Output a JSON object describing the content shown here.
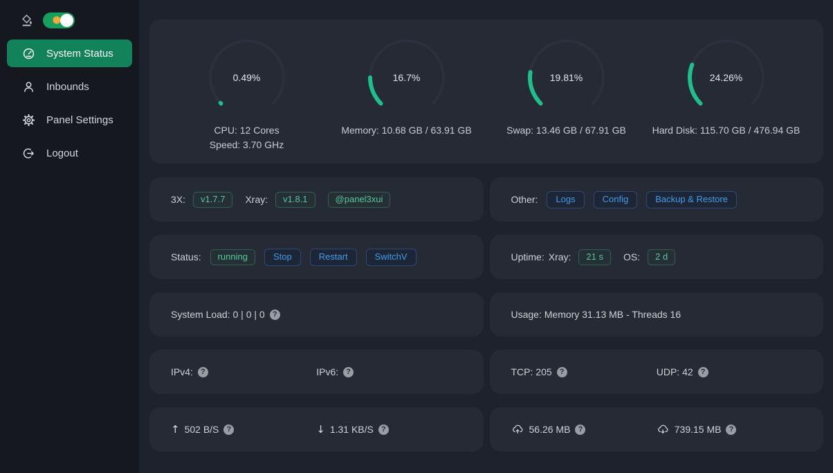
{
  "colors": {
    "accent_green": "#1fbe8b",
    "gauge_track": "#2b303c",
    "sidebar_active_green": "#11825a",
    "toggle_green": "#17a05d",
    "sun_orange": "#f2a93b",
    "tag_green_text": "#58c795",
    "button_blue_text": "#429ce8",
    "card_bg": "#252a35",
    "page_bg": "#1e222c",
    "sidebar_bg": "#15181f"
  },
  "sidebar": {
    "items": [
      {
        "label": "System Status"
      },
      {
        "label": "Inbounds"
      },
      {
        "label": "Panel Settings"
      },
      {
        "label": "Logout"
      }
    ]
  },
  "gauges": [
    {
      "percent": 0.49,
      "percent_label": "0.49%",
      "line1": "CPU: 12 Cores",
      "line2": "Speed: 3.70 GHz"
    },
    {
      "percent": 16.7,
      "percent_label": "16.7%",
      "line1": "Memory: 10.68 GB / 63.91 GB"
    },
    {
      "percent": 19.81,
      "percent_label": "19.81%",
      "line1": "Swap: 13.46 GB / 67.91 GB"
    },
    {
      "percent": 24.26,
      "percent_label": "24.26%",
      "line1": "Hard Disk: 115.70 GB / 476.94 GB"
    }
  ],
  "version_row": {
    "label_3x": "3X:",
    "tag_3x": "v1.7.7",
    "label_xray": "Xray:",
    "tag_xray": "v1.8.1",
    "telegram_tag": "@panel3xui"
  },
  "other_row": {
    "label": "Other:",
    "logs": "Logs",
    "config": "Config",
    "backup": "Backup & Restore"
  },
  "status_row": {
    "label": "Status:",
    "state_tag": "running",
    "stop": "Stop",
    "restart": "Restart",
    "switch": "SwitchV"
  },
  "uptime_row": {
    "label": "Uptime:",
    "xray_label": "Xray:",
    "xray_tag": "21 s",
    "os_label": "OS:",
    "os_tag": "2 d"
  },
  "load_row": {
    "text": "System Load: 0 | 0 | 0"
  },
  "usage_row": {
    "text": "Usage: Memory 31.13 MB - Threads 16"
  },
  "ip_row": {
    "ipv4_label": "IPv4:",
    "ipv6_label": "IPv6:"
  },
  "conn_row": {
    "tcp": "TCP: 205",
    "udp": "UDP: 42"
  },
  "speed_row": {
    "up_arrow": "↑",
    "up": "502 B/S",
    "down_arrow": "↓",
    "down": "1.31 KB/S"
  },
  "total_row": {
    "up": "56.26 MB",
    "down": "739.15 MB"
  },
  "qmark_glyph": "?"
}
